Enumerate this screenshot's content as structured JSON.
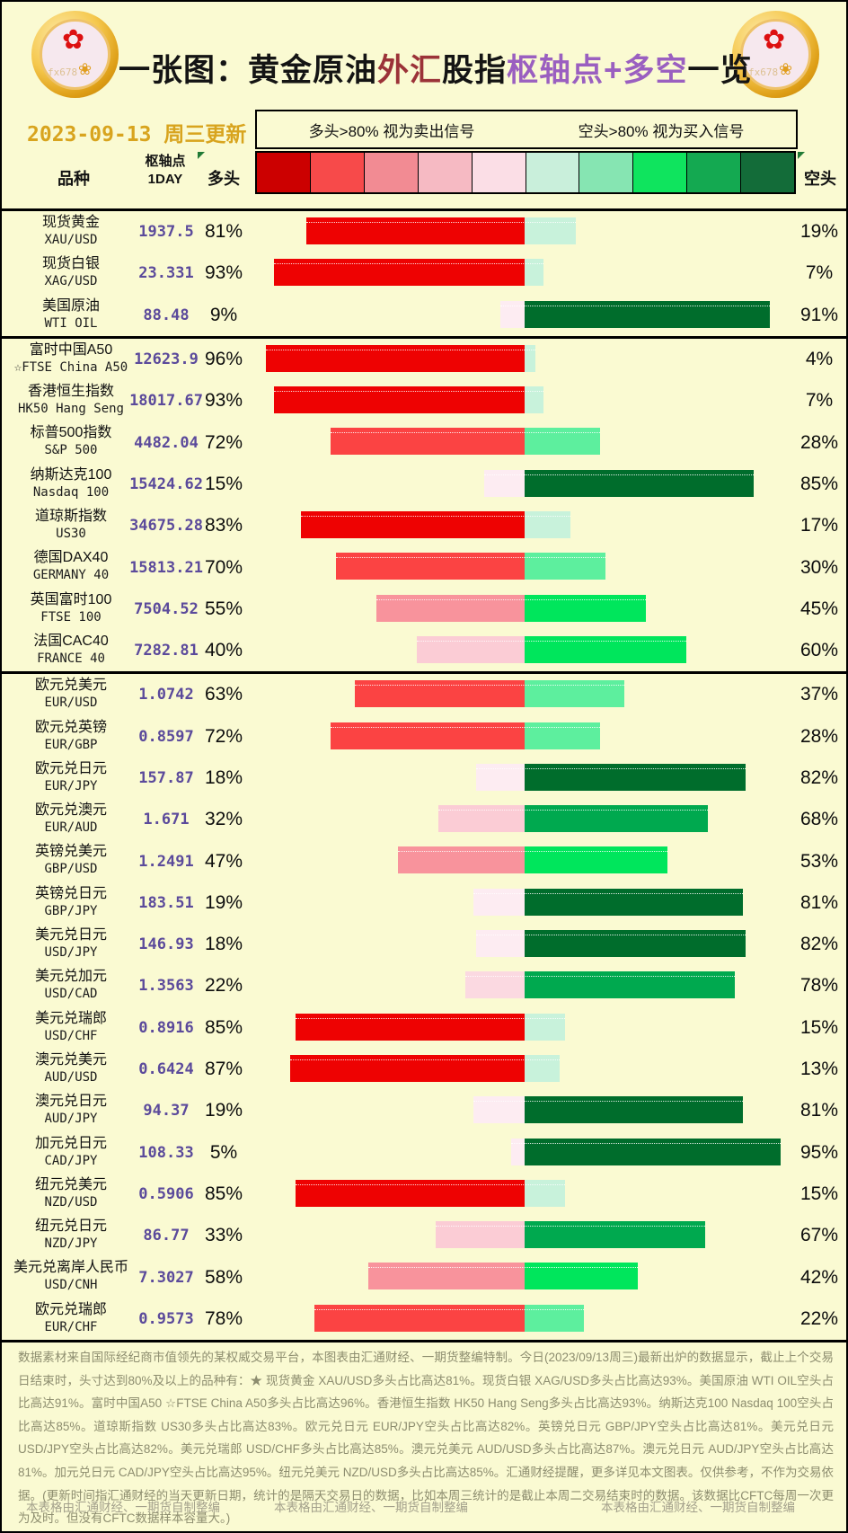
{
  "title": {
    "part1": "一张图：黄金原油",
    "part2": "外汇",
    "part3": "股指",
    "part4": "枢轴点+多空",
    "part5": "一览"
  },
  "coin": {
    "watermark": "fx678"
  },
  "date_label": "2023-09-13 周三更新",
  "legend": {
    "long_rule": "多头>80% 视为卖出信号",
    "short_rule": "空头>80% 视为买入信号"
  },
  "columns": {
    "variety": "品种",
    "pivot_line1": "枢轴点",
    "pivot_line2": "1DAY",
    "long": "多头",
    "short": "空头"
  },
  "scale_colors": [
    "#cc0000",
    "#f74a4a",
    "#f28b93",
    "#f6bac3",
    "#fbdee6",
    "#c9efdb",
    "#86e5b2",
    "#0fe45e",
    "#14a951",
    "#136c39"
  ],
  "bar_colors": {
    "long": [
      {
        "min": 80,
        "color": "#ee0202"
      },
      {
        "min": 60,
        "color": "#fb4343"
      },
      {
        "min": 45,
        "color": "#f8939c"
      },
      {
        "min": 28,
        "color": "#fbccd5"
      },
      {
        "min": 20,
        "color": "#fbd9e1"
      },
      {
        "min": 0,
        "color": "#fdecf2"
      }
    ],
    "short": [
      {
        "min": 80,
        "color": "#006d2c"
      },
      {
        "min": 65,
        "color": "#00a94f"
      },
      {
        "min": 40,
        "color": "#00e65c"
      },
      {
        "min": 20,
        "color": "#5def9e"
      },
      {
        "min": 0,
        "color": "#c8f2db"
      }
    ]
  },
  "groups": [
    {
      "rows": [
        {
          "name_cn": "现货黄金",
          "code": "XAU/USD",
          "pivot": "1937.5",
          "long": 81,
          "short": 19
        },
        {
          "name_cn": "现货白银",
          "code": "XAG/USD",
          "pivot": "23.331",
          "long": 93,
          "short": 7
        },
        {
          "name_cn": "美国原油",
          "code": "WTI OIL",
          "pivot": "88.48",
          "long": 9,
          "short": 91
        }
      ]
    },
    {
      "rows": [
        {
          "name_cn": "富时中国A50",
          "code": "☆FTSE China A50",
          "pivot": "12623.9",
          "long": 96,
          "short": 4
        },
        {
          "name_cn": "香港恒生指数",
          "code": "HK50 Hang Seng",
          "pivot": "18017.67",
          "long": 93,
          "short": 7
        },
        {
          "name_cn": "标普500指数",
          "code": "S&P 500",
          "pivot": "4482.04",
          "long": 72,
          "short": 28
        },
        {
          "name_cn": "纳斯达克100",
          "code": "Nasdaq 100",
          "pivot": "15424.62",
          "long": 15,
          "short": 85
        },
        {
          "name_cn": "道琼斯指数",
          "code": "US30",
          "pivot": "34675.28",
          "long": 83,
          "short": 17
        },
        {
          "name_cn": "德国DAX40",
          "code": "GERMANY 40",
          "pivot": "15813.21",
          "long": 70,
          "short": 30
        },
        {
          "name_cn": "英国富时100",
          "code": "FTSE 100",
          "pivot": "7504.52",
          "long": 55,
          "short": 45
        },
        {
          "name_cn": "法国CAC40",
          "code": "FRANCE 40",
          "pivot": "7282.81",
          "long": 40,
          "short": 60
        }
      ]
    },
    {
      "rows": [
        {
          "name_cn": "欧元兑美元",
          "code": "EUR/USD",
          "pivot": "1.0742",
          "long": 63,
          "short": 37
        },
        {
          "name_cn": "欧元兑英镑",
          "code": "EUR/GBP",
          "pivot": "0.8597",
          "long": 72,
          "short": 28
        },
        {
          "name_cn": "欧元兑日元",
          "code": "EUR/JPY",
          "pivot": "157.87",
          "long": 18,
          "short": 82
        },
        {
          "name_cn": "欧元兑澳元",
          "code": "EUR/AUD",
          "pivot": "1.671",
          "long": 32,
          "short": 68
        },
        {
          "name_cn": "英镑兑美元",
          "code": "GBP/USD",
          "pivot": "1.2491",
          "long": 47,
          "short": 53
        },
        {
          "name_cn": "英镑兑日元",
          "code": "GBP/JPY",
          "pivot": "183.51",
          "long": 19,
          "short": 81
        },
        {
          "name_cn": "美元兑日元",
          "code": "USD/JPY",
          "pivot": "146.93",
          "long": 18,
          "short": 82
        },
        {
          "name_cn": "美元兑加元",
          "code": "USD/CAD",
          "pivot": "1.3563",
          "long": 22,
          "short": 78
        },
        {
          "name_cn": "美元兑瑞郎",
          "code": "USD/CHF",
          "pivot": "0.8916",
          "long": 85,
          "short": 15
        },
        {
          "name_cn": "澳元兑美元",
          "code": "AUD/USD",
          "pivot": "0.6424",
          "long": 87,
          "short": 13
        },
        {
          "name_cn": "澳元兑日元",
          "code": "AUD/JPY",
          "pivot": "94.37",
          "long": 19,
          "short": 81
        },
        {
          "name_cn": "加元兑日元",
          "code": "CAD/JPY",
          "pivot": "108.33",
          "long": 5,
          "short": 95
        },
        {
          "name_cn": "纽元兑美元",
          "code": "NZD/USD",
          "pivot": "0.5906",
          "long": 85,
          "short": 15
        },
        {
          "name_cn": "纽元兑日元",
          "code": "NZD/JPY",
          "pivot": "86.77",
          "long": 33,
          "short": 67
        },
        {
          "name_cn": "美元兑离岸人民币",
          "code": "USD/CNH",
          "pivot": "7.3027",
          "long": 58,
          "short": 42
        },
        {
          "name_cn": "欧元兑瑞郎",
          "code": "EUR/CHF",
          "pivot": "0.9573",
          "long": 78,
          "short": 22
        }
      ]
    }
  ],
  "chart_data": {
    "type": "bar",
    "orientation": "horizontal-diverging",
    "title": "一张图：黄金原油外汇股指枢轴点+多空一览",
    "categories": [
      "XAU/USD",
      "XAG/USD",
      "WTI OIL",
      "☆FTSE China A50",
      "HK50 Hang Seng",
      "S&P 500",
      "Nasdaq 100",
      "US30",
      "GERMANY 40",
      "FTSE 100",
      "FRANCE 40",
      "EUR/USD",
      "EUR/GBP",
      "EUR/JPY",
      "EUR/AUD",
      "GBP/USD",
      "GBP/JPY",
      "USD/JPY",
      "USD/CAD",
      "USD/CHF",
      "AUD/USD",
      "AUD/JPY",
      "CAD/JPY",
      "NZD/USD",
      "NZD/JPY",
      "USD/CNH",
      "EUR/CHF"
    ],
    "pivot_1day": [
      1937.5,
      23.331,
      88.48,
      12623.9,
      18017.67,
      4482.04,
      15424.62,
      34675.28,
      15813.21,
      7504.52,
      7282.81,
      1.0742,
      0.8597,
      157.87,
      1.671,
      1.2491,
      183.51,
      146.93,
      1.3563,
      0.8916,
      0.6424,
      94.37,
      108.33,
      0.5906,
      86.77,
      7.3027,
      0.9573
    ],
    "series": [
      {
        "name": "多头",
        "values": [
          81,
          93,
          9,
          96,
          93,
          72,
          15,
          83,
          70,
          55,
          40,
          63,
          72,
          18,
          32,
          47,
          19,
          18,
          22,
          85,
          87,
          19,
          5,
          85,
          33,
          58,
          78
        ]
      },
      {
        "name": "空头",
        "values": [
          19,
          7,
          91,
          4,
          7,
          28,
          85,
          17,
          30,
          45,
          60,
          37,
          28,
          82,
          68,
          53,
          81,
          82,
          78,
          15,
          13,
          81,
          95,
          15,
          67,
          42,
          22
        ]
      }
    ],
    "xlim": [
      -100,
      100
    ],
    "legend_position": "top",
    "grid": false
  },
  "footer": {
    "paragraph": "数据素材来自国际经纪商市值领先的某权威交易平台，本图表由汇通财经、一期货整编特制。今日(2023/09/13周三)最新出炉的数据显示，截止上个交易日结束时，头寸达到80%及以上的品种有：★ 现货黄金 XAU/USD多头占比高达81%。现货白银 XAG/USD多头占比高达93%。美国原油 WTI OIL空头占比高达91%。富时中国A50 ☆FTSE China A50多头占比高达96%。香港恒生指数 HK50 Hang Seng多头占比高达93%。纳斯达克100 Nasdaq 100空头占比高达85%。道琼斯指数 US30多头占比高达83%。欧元兑日元 EUR/JPY空头占比高达82%。英镑兑日元 GBP/JPY空头占比高达81%。美元兑日元 USD/JPY空头占比高达82%。美元兑瑞郎 USD/CHF多头占比高达85%。澳元兑美元 AUD/USD多头占比高达87%。澳元兑日元 AUD/JPY空头占比高达81%。加元兑日元 CAD/JPY空头占比高达95%。纽元兑美元 NZD/USD多头占比高达85%。汇通财经提醒，更多详见本文图表。仅供参考，不作为交易依据。(更新时间指汇通财经的当天更新日期，统计的是隔天交易日的数据，比如本周三统计的是截止本周二交易结束时的数据。该数据比CFTC每周一次更为及时。但没有CFTC数据样本容量大。)",
    "notes": [
      "本表格由汇通财经、一期货自制整编",
      "本表格由汇通财经、一期货自制整编",
      "本表格由汇通财经、一期货自制整编"
    ]
  }
}
